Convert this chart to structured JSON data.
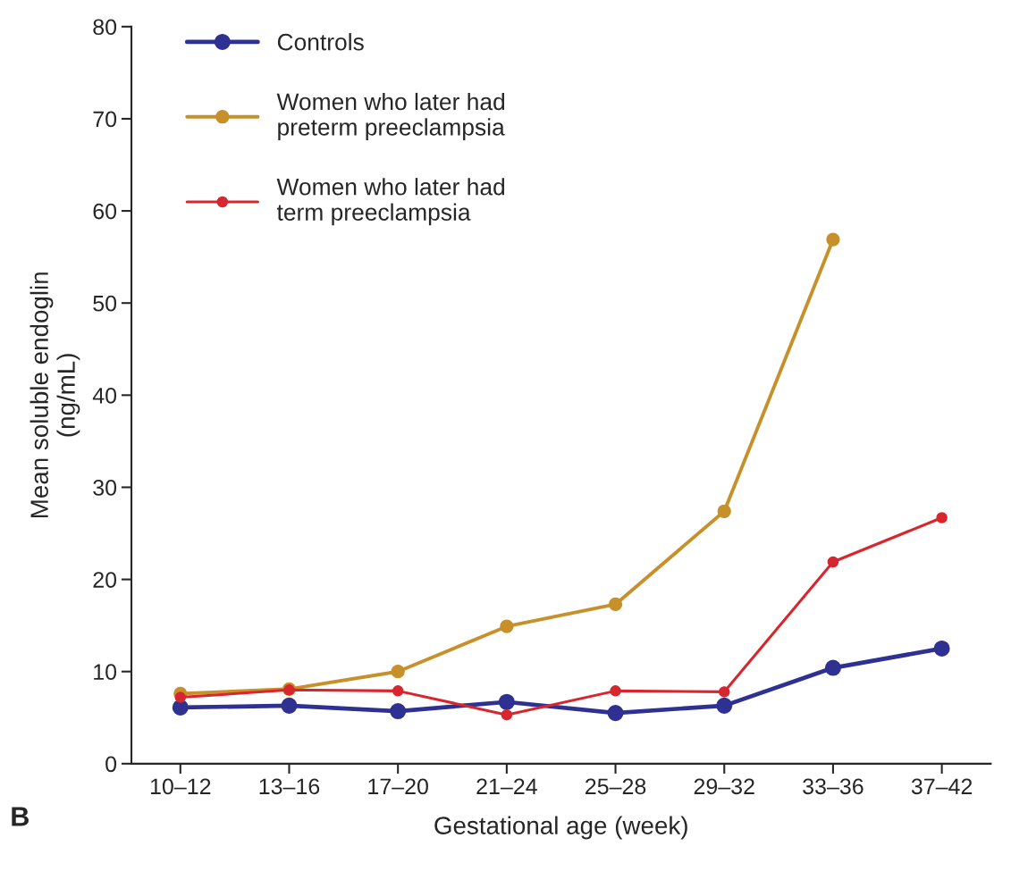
{
  "chart_data": {
    "type": "line",
    "xlabel": "Gestational age (week)",
    "ylabel": "Mean soluble endoglin\n(ng/mL)",
    "categories": [
      "10–12",
      "13–16",
      "17–20",
      "21–24",
      "25–28",
      "29–32",
      "33–36",
      "37–42"
    ],
    "series": [
      {
        "name": "Controls",
        "color": "#2e3192",
        "values": [
          6.1,
          6.3,
          5.7,
          6.7,
          5.5,
          6.3,
          10.4,
          12.5
        ]
      },
      {
        "name": "Women who later had\npreterm preeclampsia",
        "color": "#c8902a",
        "values": [
          7.6,
          8.1,
          10.0,
          14.9,
          17.3,
          27.4,
          56.9,
          null
        ]
      },
      {
        "name": "Women who later had\nterm preeclampsia",
        "color": "#d7262e",
        "values": [
          7.2,
          8.0,
          7.9,
          5.3,
          7.9,
          7.8,
          21.9,
          26.7
        ]
      }
    ],
    "ylim": [
      0,
      80
    ],
    "yticks": [
      0,
      10,
      20,
      30,
      40,
      50,
      60,
      70,
      80
    ],
    "grid": false,
    "legend": "top left",
    "marker": "circle",
    "line_style": "solid",
    "annotations": [
      "B"
    ]
  }
}
